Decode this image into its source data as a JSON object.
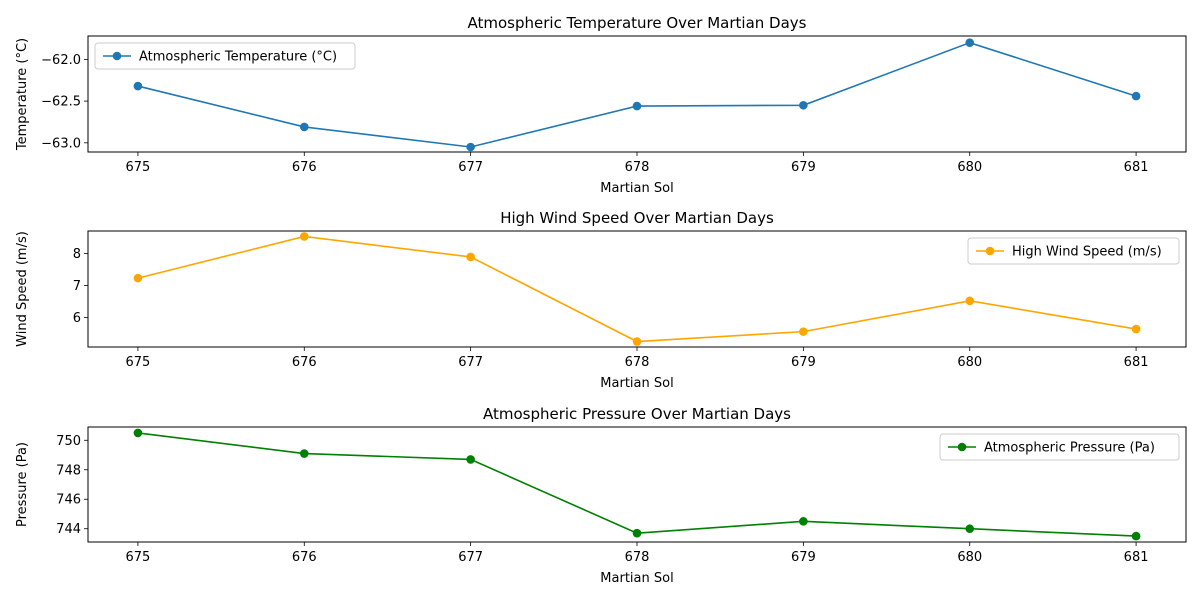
{
  "chart_data": [
    {
      "type": "line",
      "title": "Atmospheric Temperature Over Martian Days",
      "xlabel": "Martian Sol",
      "ylabel": "Temperature (°C)",
      "x": [
        675,
        676,
        677,
        678,
        679,
        680,
        681
      ],
      "xlim": [
        674.7,
        681.3
      ],
      "ylim": [
        -63.11,
        -61.72
      ],
      "yticks": [
        -63.0,
        -62.5,
        -62.0
      ],
      "ytick_labels": [
        "−63.0",
        "−62.5",
        "−62.0"
      ],
      "grid": false,
      "legend_position": "upper left",
      "series": [
        {
          "name": "Atmospheric Temperature (°C)",
          "color": "#1f77b4",
          "marker": "circle",
          "values": [
            -62.32,
            -62.81,
            -63.05,
            -62.56,
            -62.55,
            -61.8,
            -62.44
          ]
        }
      ]
    },
    {
      "type": "line",
      "title": "High Wind Speed Over Martian Days",
      "xlabel": "Martian Sol",
      "ylabel": "Wind Speed (m/s)",
      "x": [
        675,
        676,
        677,
        678,
        679,
        680,
        681
      ],
      "xlim": [
        674.7,
        681.3
      ],
      "ylim": [
        5.08,
        8.7
      ],
      "yticks": [
        6,
        7,
        8
      ],
      "ytick_labels": [
        "6",
        "7",
        "8"
      ],
      "grid": false,
      "legend_position": "upper right",
      "series": [
        {
          "name": "High Wind Speed (m/s)",
          "color": "#ffa500",
          "marker": "circle",
          "values": [
            7.23,
            8.53,
            7.89,
            5.25,
            5.56,
            6.52,
            5.64
          ]
        }
      ]
    },
    {
      "type": "line",
      "title": "Atmospheric Pressure Over Martian Days",
      "xlabel": "Martian Sol",
      "ylabel": "Pressure (Pa)",
      "x": [
        675,
        676,
        677,
        678,
        679,
        680,
        681
      ],
      "xlim": [
        674.7,
        681.3
      ],
      "ylim": [
        743.1,
        750.9
      ],
      "yticks": [
        744,
        746,
        748,
        750
      ],
      "ytick_labels": [
        "744",
        "746",
        "748",
        "750"
      ],
      "grid": false,
      "legend_position": "upper right",
      "series": [
        {
          "name": "Atmospheric Pressure (Pa)",
          "color": "#008000",
          "marker": "circle",
          "values": [
            750.5,
            749.1,
            748.7,
            743.7,
            744.5,
            744.0,
            743.5
          ]
        }
      ]
    }
  ]
}
